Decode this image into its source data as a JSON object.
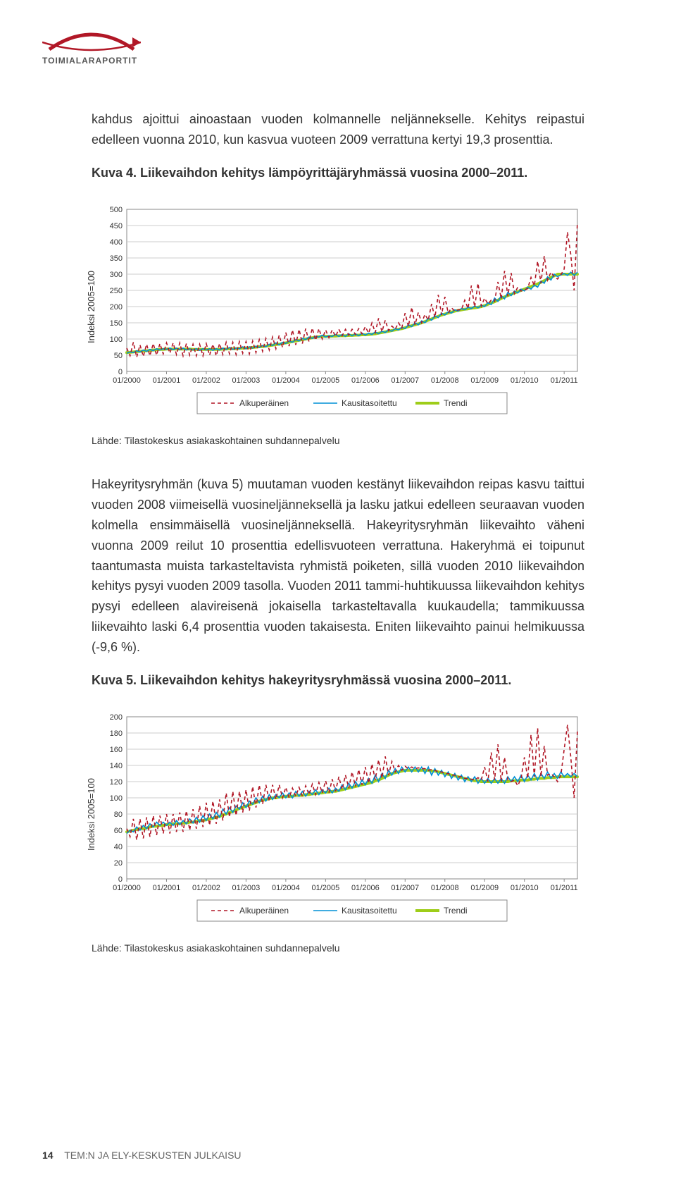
{
  "logo": {
    "brand": "TOIMIALARAPORTIT",
    "arc_color": "#b11726"
  },
  "intro": {
    "p1": "kahdus ajoittui ainoastaan vuoden kolmannelle neljännekselle. Kehitys reipastui edelleen vuonna 2010, kun kasvua vuoteen 2009 verrattuna kertyi 19,3 prosenttia.",
    "kuva4_label": "Kuva 4.",
    "kuva4_rest": " Liikevaihdon kehitys lämpöyrittäjäryhmässä vuosina 2000–2011."
  },
  "source_text": "Lähde: Tilastokeskus asiakaskohtainen suhdannepalvelu",
  "mid_paragraph": "Hakeyritysryhmän (kuva 5) muutaman vuoden kestänyt liikevaihdon reipas kasvu taittui vuoden 2008 viimeisellä vuosineljänneksellä ja lasku jatkui edelleen seuraavan vuoden kolmella ensimmäisellä vuosineljänneksellä. Hakeyritysryhmän liikevaihto väheni vuonna 2009 reilut 10 prosenttia edellisvuoteen verrattuna. Hakeryhmä ei toipunut taantumasta muista tarkasteltavista ryhmistä poiketen, sillä vuoden 2010 liikevaihdon kehitys pysyi vuoden 2009 tasolla. Vuoden 2011 tammi-huhtikuussa liikevaihdon kehitys pysyi edelleen alavireisenä jokaisella tarkasteltavalla kuukaudella; tammikuussa liikevaihto laski 6,4 prosenttia vuoden takaisesta. Eniten liikevaihto painui helmikuussa (-9,6 %).",
  "kuva5": {
    "label": "Kuva 5.",
    "rest": " Liikevaihdon kehitys hakeyritysryhmässä vuosina 2000–2011."
  },
  "legend": {
    "alku": "Alkuperäinen",
    "kausi": "Kausitasoitettu",
    "trendi": "Trendi"
  },
  "chart1": {
    "type": "line",
    "ylabel": "Indeksi 2005=100",
    "ylim": [
      0,
      500
    ],
    "ytick_step": 50,
    "yticks": [
      0,
      50,
      100,
      150,
      200,
      250,
      300,
      350,
      400,
      450,
      500
    ],
    "x_labels": [
      "01/2000",
      "01/2001",
      "01/2002",
      "01/2003",
      "01/2004",
      "01/2005",
      "01/2006",
      "01/2007",
      "01/2008",
      "01/2009",
      "01/2010",
      "01/2011"
    ],
    "background_color": "#ffffff",
    "grid_color": "#cccccc",
    "border_color": "#888888",
    "alku_color": "#b11726",
    "kausi_color": "#0090d6",
    "trendi_color": "#9ecd19",
    "alku_dash": "5,4",
    "alku_width": 1.6,
    "kausi_width": 1.6,
    "trendi_width": 4,
    "label_fontsize": 11,
    "trendi": [
      58,
      59,
      60,
      61,
      62,
      63,
      64,
      65,
      66,
      67,
      68,
      68,
      69,
      69,
      69,
      69,
      69,
      69,
      69,
      69,
      68,
      68,
      68,
      68,
      68,
      68,
      68,
      68,
      68,
      69,
      69,
      70,
      70,
      70,
      71,
      72,
      72,
      73,
      74,
      75,
      76,
      77,
      78,
      80,
      81,
      83,
      84,
      86,
      88,
      90,
      92,
      94,
      96,
      98,
      100,
      102,
      104,
      106,
      107,
      108,
      108,
      108,
      109,
      109,
      110,
      110,
      110,
      111,
      111,
      112,
      112,
      113,
      113,
      114,
      115,
      116,
      118,
      120,
      122,
      124,
      126,
      128,
      130,
      132,
      135,
      138,
      141,
      144,
      147,
      150,
      154,
      158,
      162,
      166,
      170,
      174,
      177,
      180,
      183,
      186,
      188,
      190,
      192,
      193,
      195,
      196,
      198,
      200,
      203,
      207,
      211,
      215,
      220,
      225,
      230,
      234,
      238,
      242,
      246,
      250,
      254,
      258,
      262,
      266,
      270,
      275,
      280,
      285,
      290,
      295,
      300,
      300,
      300,
      300,
      300,
      300,
      300
    ],
    "kausi": [
      56,
      60,
      58,
      64,
      60,
      66,
      62,
      68,
      64,
      70,
      66,
      70,
      68,
      72,
      67,
      72,
      67,
      72,
      66,
      70,
      66,
      70,
      65,
      70,
      66,
      70,
      65,
      70,
      66,
      72,
      68,
      74,
      68,
      72,
      70,
      76,
      70,
      76,
      72,
      78,
      74,
      80,
      76,
      84,
      80,
      88,
      82,
      90,
      86,
      94,
      90,
      98,
      94,
      102,
      98,
      106,
      102,
      108,
      106,
      112,
      106,
      110,
      108,
      114,
      108,
      114,
      108,
      116,
      110,
      116,
      110,
      118,
      112,
      118,
      114,
      122,
      116,
      124,
      120,
      128,
      124,
      132,
      128,
      136,
      132,
      144,
      138,
      150,
      144,
      156,
      150,
      164,
      158,
      172,
      166,
      180,
      174,
      184,
      180,
      190,
      186,
      194,
      190,
      198,
      194,
      202,
      196,
      204,
      200,
      212,
      206,
      226,
      216,
      234,
      224,
      244,
      234,
      248,
      242,
      254,
      248,
      260,
      254,
      266,
      260,
      278,
      272,
      292,
      282,
      300,
      292,
      298,
      302,
      296,
      306,
      296,
      306
    ],
    "alku": [
      72,
      48,
      90,
      44,
      82,
      46,
      84,
      48,
      86,
      50,
      86,
      54,
      88,
      56,
      88,
      52,
      88,
      48,
      86,
      50,
      84,
      48,
      84,
      48,
      86,
      50,
      84,
      48,
      86,
      52,
      90,
      54,
      90,
      52,
      92,
      56,
      92,
      54,
      94,
      58,
      98,
      62,
      102,
      66,
      106,
      70,
      112,
      74,
      120,
      78,
      128,
      82,
      130,
      86,
      132,
      92,
      134,
      96,
      132,
      100,
      128,
      104,
      128,
      108,
      130,
      110,
      130,
      112,
      130,
      114,
      132,
      116,
      138,
      118,
      150,
      120,
      164,
      122,
      158,
      126,
      140,
      130,
      150,
      134,
      180,
      138,
      198,
      144,
      182,
      150,
      176,
      158,
      208,
      166,
      236,
      174,
      230,
      180,
      196,
      186,
      190,
      190,
      220,
      194,
      265,
      198,
      272,
      202,
      226,
      208,
      220,
      216,
      276,
      224,
      310,
      232,
      304,
      240,
      260,
      248,
      250,
      256,
      290,
      264,
      340,
      272,
      356,
      282,
      306,
      292,
      285,
      298,
      316,
      430,
      360,
      250,
      460
    ]
  },
  "chart2": {
    "type": "line",
    "ylabel": "Indeksi 2005=100",
    "ylim": [
      0,
      200
    ],
    "ytick_step": 20,
    "yticks": [
      0,
      20,
      40,
      60,
      80,
      100,
      120,
      140,
      160,
      180,
      200
    ],
    "x_labels": [
      "01/2000",
      "01/2001",
      "01/2002",
      "01/2003",
      "01/2004",
      "01/2005",
      "01/2006",
      "01/2007",
      "01/2008",
      "01/2009",
      "01/2010",
      "01/2011"
    ],
    "background_color": "#ffffff",
    "grid_color": "#cccccc",
    "border_color": "#888888",
    "alku_color": "#b11726",
    "kausi_color": "#0090d6",
    "trendi_color": "#9ecd19",
    "alku_dash": "5,4",
    "alku_width": 1.6,
    "kausi_width": 1.6,
    "trendi_width": 4,
    "label_fontsize": 11,
    "trendi": [
      58,
      59,
      60,
      61,
      62,
      62,
      63,
      64,
      65,
      65,
      66,
      66,
      67,
      67,
      68,
      68,
      68,
      69,
      69,
      70,
      70,
      71,
      72,
      72,
      73,
      74,
      75,
      76,
      77,
      79,
      80,
      82,
      83,
      85,
      87,
      88,
      90,
      91,
      93,
      94,
      96,
      97,
      98,
      99,
      100,
      100,
      101,
      101,
      102,
      102,
      102,
      103,
      103,
      103,
      104,
      104,
      105,
      105,
      106,
      106,
      107,
      107,
      108,
      108,
      109,
      110,
      111,
      112,
      113,
      114,
      115,
      116,
      117,
      118,
      119,
      121,
      122,
      124,
      126,
      128,
      130,
      131,
      132,
      133,
      134,
      134,
      134,
      134,
      134,
      134,
      134,
      134,
      133,
      133,
      132,
      131,
      130,
      129,
      128,
      127,
      126,
      125,
      124,
      123,
      122,
      121,
      121,
      120,
      120,
      120,
      120,
      120,
      120,
      120,
      120,
      120,
      121,
      121,
      121,
      122,
      122,
      122,
      123,
      123,
      124,
      124,
      124,
      125,
      125,
      125,
      126,
      126,
      126,
      126,
      126,
      126,
      126
    ],
    "kausi": [
      56,
      60,
      58,
      64,
      60,
      66,
      62,
      68,
      64,
      70,
      66,
      70,
      66,
      70,
      66,
      72,
      67,
      72,
      68,
      74,
      69,
      76,
      70,
      78,
      72,
      80,
      74,
      82,
      76,
      86,
      80,
      88,
      82,
      90,
      86,
      94,
      88,
      96,
      92,
      100,
      94,
      102,
      96,
      104,
      98,
      104,
      100,
      106,
      100,
      106,
      100,
      108,
      102,
      108,
      102,
      108,
      104,
      110,
      104,
      110,
      106,
      112,
      106,
      112,
      108,
      116,
      110,
      118,
      112,
      120,
      114,
      122,
      116,
      124,
      118,
      128,
      120,
      130,
      124,
      134,
      128,
      136,
      130,
      138,
      132,
      138,
      132,
      138,
      132,
      138,
      130,
      138,
      128,
      136,
      128,
      134,
      126,
      132,
      124,
      130,
      122,
      128,
      120,
      126,
      120,
      126,
      118,
      124,
      118,
      124,
      118,
      124,
      118,
      124,
      118,
      126,
      120,
      126,
      120,
      128,
      120,
      128,
      122,
      130,
      122,
      130,
      124,
      132,
      124,
      130,
      124,
      132,
      126,
      130,
      126,
      130,
      126
    ],
    "alku": [
      62,
      52,
      74,
      48,
      74,
      50,
      76,
      52,
      78,
      54,
      78,
      56,
      80,
      56,
      80,
      58,
      82,
      58,
      84,
      60,
      86,
      62,
      90,
      64,
      94,
      66,
      96,
      68,
      98,
      72,
      106,
      76,
      108,
      78,
      108,
      82,
      110,
      84,
      114,
      88,
      116,
      92,
      116,
      96,
      116,
      98,
      116,
      100,
      113,
      100,
      112,
      102,
      113,
      102,
      115,
      104,
      117,
      104,
      119,
      106,
      121,
      106,
      123,
      108,
      126,
      110,
      128,
      112,
      132,
      114,
      135,
      116,
      138,
      118,
      142,
      122,
      147,
      124,
      151,
      128,
      145,
      132,
      140,
      134,
      139,
      136,
      138,
      136,
      137,
      136,
      136,
      134,
      135,
      134,
      132,
      132,
      130,
      130,
      128,
      128,
      126,
      126,
      124,
      124,
      123,
      122,
      125,
      122,
      138,
      120,
      156,
      122,
      166,
      120,
      150,
      122,
      120,
      122,
      115,
      124,
      150,
      124,
      178,
      126,
      186,
      126,
      164,
      128,
      130,
      126,
      120,
      128,
      160,
      190,
      150,
      100,
      182
    ]
  },
  "footer": {
    "pagenum": "14",
    "text": "TEM:N JA ELY-KESKUSTEN JULKAISU"
  }
}
